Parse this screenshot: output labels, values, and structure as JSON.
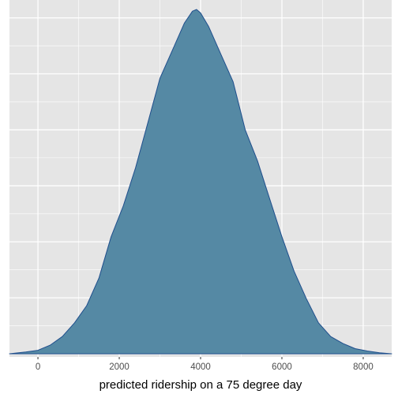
{
  "chart_data": {
    "type": "area",
    "title": "",
    "xlabel": "predicted ridership on a 75 degree day",
    "ylabel": "",
    "xlim": [
      -700,
      8700
    ],
    "ylim": [
      0,
      1
    ],
    "x_ticks": [
      0,
      2000,
      4000,
      6000,
      8000
    ],
    "x_tick_labels": [
      "0",
      "2000",
      "4000",
      "6000",
      "8000"
    ],
    "y_tick_labels_visible": false,
    "grid": true,
    "colors": {
      "panel_background": "#e5e5e5",
      "grid": "#ffffff",
      "fill": "#5589a4",
      "stroke": "#1f4e8c"
    },
    "series": [
      {
        "x": [
          -700,
          -300,
          0,
          300,
          600,
          900,
          1200,
          1500,
          1800,
          2100,
          2400,
          2700,
          3000,
          3300,
          3600,
          3800,
          3900,
          4000,
          4200,
          4500,
          4800,
          5100,
          5400,
          5700,
          6000,
          6300,
          6600,
          6900,
          7200,
          7500,
          7800,
          8100,
          8400,
          8700
        ],
        "y": [
          0.0,
          0.005,
          0.01,
          0.025,
          0.05,
          0.09,
          0.14,
          0.22,
          0.34,
          0.43,
          0.54,
          0.67,
          0.8,
          0.88,
          0.96,
          0.995,
          1.0,
          0.99,
          0.95,
          0.87,
          0.79,
          0.65,
          0.56,
          0.45,
          0.34,
          0.24,
          0.16,
          0.09,
          0.05,
          0.03,
          0.015,
          0.008,
          0.003,
          0.0
        ]
      }
    ]
  }
}
